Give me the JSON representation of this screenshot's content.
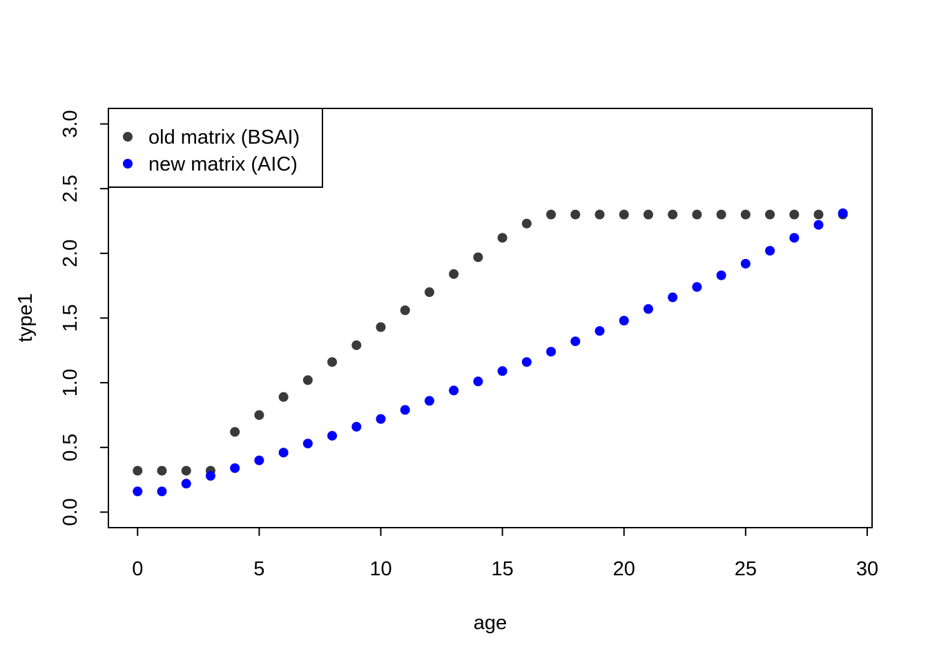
{
  "chart_data": {
    "type": "scatter",
    "title": "",
    "xlabel": "age",
    "ylabel": "type1",
    "xlim": [
      -1.2,
      30.2
    ],
    "ylim": [
      -0.12,
      3.12
    ],
    "xticks": [
      0,
      5,
      10,
      15,
      20,
      25,
      30
    ],
    "yticks": [
      0.0,
      0.5,
      1.0,
      1.5,
      2.0,
      2.5,
      3.0
    ],
    "xtick_labels": [
      "0",
      "5",
      "10",
      "15",
      "20",
      "25",
      "30"
    ],
    "ytick_labels": [
      "0.0",
      "0.5",
      "1.0",
      "1.5",
      "2.0",
      "2.5",
      "3.0"
    ],
    "grid": false,
    "legend_position": "top-left",
    "series": [
      {
        "name": "old matrix (BSAI)",
        "color": "#3a3a3a",
        "x": [
          0,
          1,
          2,
          3,
          4,
          5,
          6,
          7,
          8,
          9,
          10,
          11,
          12,
          13,
          14,
          15,
          16,
          17,
          18,
          19,
          20,
          21,
          22,
          23,
          24,
          25,
          26,
          27,
          28,
          29
        ],
        "y": [
          0.32,
          0.32,
          0.32,
          0.32,
          0.62,
          0.75,
          0.89,
          1.02,
          1.16,
          1.29,
          1.43,
          1.56,
          1.7,
          1.84,
          1.97,
          2.12,
          2.23,
          2.3,
          2.3,
          2.3,
          2.3,
          2.3,
          2.3,
          2.3,
          2.3,
          2.3,
          2.3,
          2.3,
          2.3,
          2.3
        ]
      },
      {
        "name": "new matrix (AIC)",
        "color": "#0000ff",
        "x": [
          0,
          1,
          2,
          3,
          4,
          5,
          6,
          7,
          8,
          9,
          10,
          11,
          12,
          13,
          14,
          15,
          16,
          17,
          18,
          19,
          20,
          21,
          22,
          23,
          24,
          25,
          26,
          27,
          28,
          29
        ],
        "y": [
          0.16,
          0.16,
          0.22,
          0.28,
          0.34,
          0.4,
          0.46,
          0.53,
          0.59,
          0.66,
          0.72,
          0.79,
          0.86,
          0.94,
          1.01,
          1.09,
          1.16,
          1.24,
          1.32,
          1.4,
          1.48,
          1.57,
          1.66,
          1.74,
          1.83,
          1.92,
          2.02,
          2.12,
          2.22,
          2.31
        ]
      }
    ]
  }
}
